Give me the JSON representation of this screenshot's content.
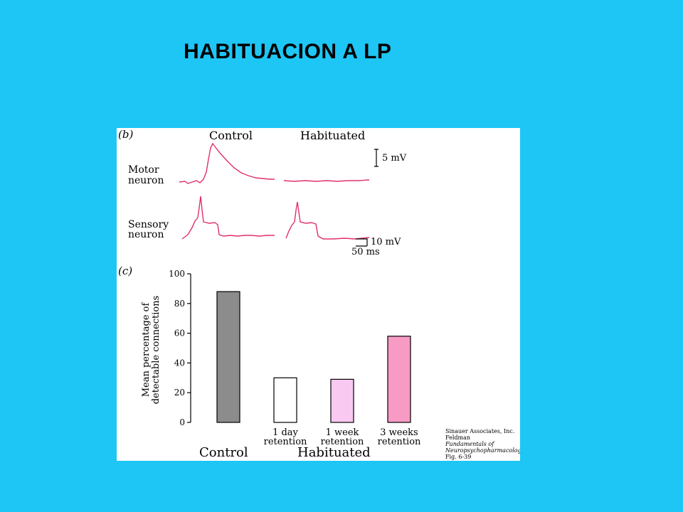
{
  "slide": {
    "title": "HABITUACION A LP"
  },
  "colors": {
    "background": "#1ec6f5",
    "trace": "#e0306a",
    "control_bar": "#8c8c8c",
    "day1_bar": "#ffffff",
    "week1_bar": "#f9c9f2",
    "weeks3_bar": "#f79ac4"
  },
  "panel_b": {
    "label": "(b)",
    "column_control": "Control",
    "column_habituated": "Habituated",
    "row_motor": [
      "Motor",
      "neuron"
    ],
    "row_sensory": [
      "Sensory",
      "neuron"
    ],
    "scale_motor": "5 mV",
    "scale_sensory_v": "10 mV",
    "scale_sensory_t": "50 ms"
  },
  "chart_data": {
    "type": "bar",
    "panel_label": "(c)",
    "categories": [
      "",
      "1 day retention",
      "1 week retention",
      "3 weeks retention"
    ],
    "category_lines": [
      [
        "",
        ""
      ],
      [
        "1 day",
        "retention"
      ],
      [
        "1 week",
        "retention"
      ],
      [
        "3 weeks",
        "retention"
      ]
    ],
    "values": [
      88,
      30,
      29,
      58
    ],
    "groups": {
      "control": "Control",
      "habituated": "Habituated"
    },
    "ylabel": [
      "Mean percentage of",
      "detectable connections"
    ],
    "yticks": [
      0,
      20,
      40,
      60,
      80,
      100
    ],
    "ylim": [
      0,
      100
    ],
    "grid": false
  },
  "credit": [
    "Sinauer Associates, Inc.",
    "Feldman",
    "Fundamentals of",
    "Neuropsychopharmacology",
    "Fig. 6-39"
  ]
}
